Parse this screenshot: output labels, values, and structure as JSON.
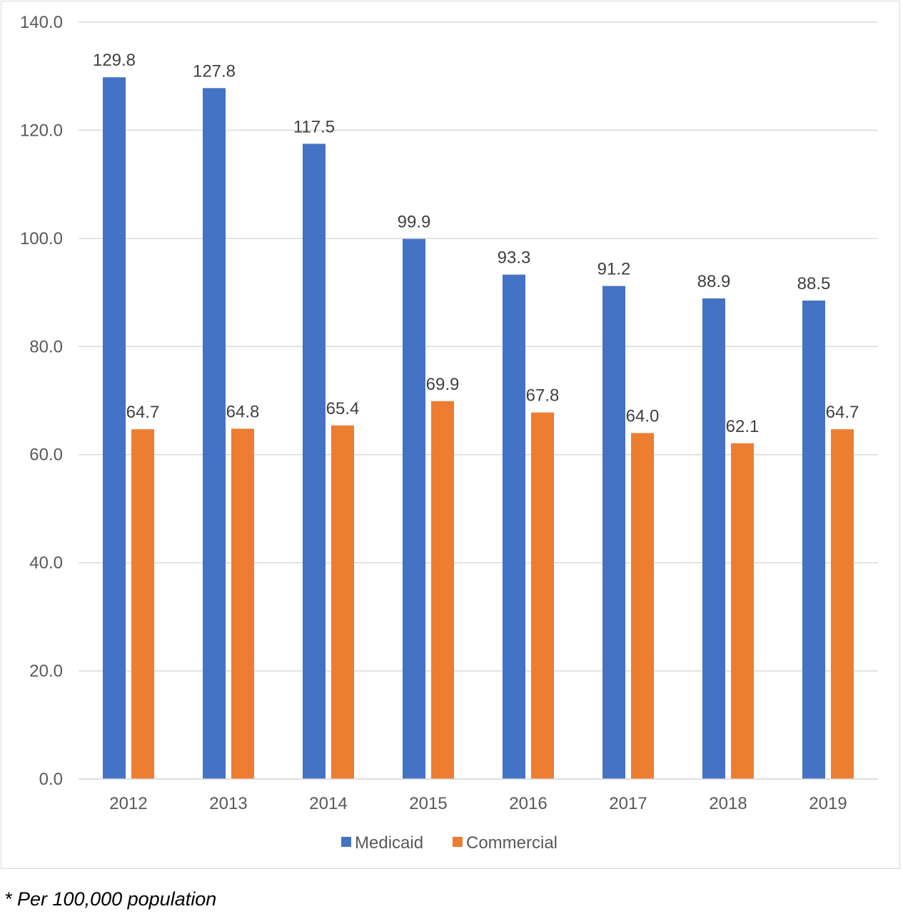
{
  "chart_data": {
    "type": "bar",
    "categories": [
      "2012",
      "2013",
      "2014",
      "2015",
      "2016",
      "2017",
      "2018",
      "2019"
    ],
    "series": [
      {
        "name": "Medicaid",
        "color": "#4472C4",
        "values": [
          129.8,
          127.8,
          117.5,
          99.9,
          93.3,
          91.2,
          88.9,
          88.5
        ]
      },
      {
        "name": "Commercial",
        "color": "#ED7D31",
        "values": [
          64.7,
          64.8,
          65.4,
          69.9,
          67.8,
          64.0,
          62.1,
          64.7
        ]
      }
    ],
    "ylim": [
      0,
      140
    ],
    "yticks": [
      "0.0",
      "20.0",
      "40.0",
      "60.0",
      "80.0",
      "100.0",
      "120.0",
      "140.0"
    ],
    "grid": true,
    "legend_position": "bottom"
  },
  "footnote": "* Per 100,000 population"
}
